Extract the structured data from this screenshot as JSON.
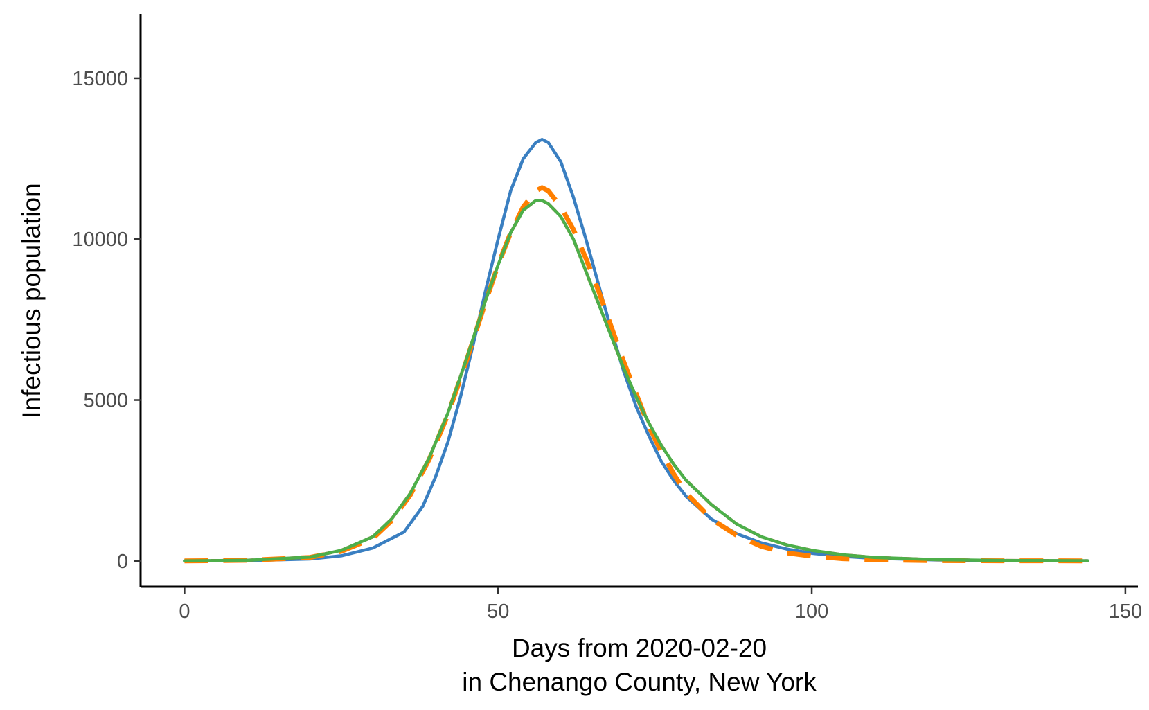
{
  "chart_data": {
    "type": "line",
    "title": "",
    "xlabel_line1": "Days from 2020-02-20",
    "xlabel_line2": "in Chenango County, New York",
    "ylabel": "Infectious population",
    "xlim": [
      -7,
      152
    ],
    "ylim": [
      -800,
      17000
    ],
    "x_ticks": [
      0,
      50,
      100,
      150
    ],
    "y_ticks": [
      0,
      5000,
      10000,
      15000
    ],
    "x_tick_labels": [
      "0",
      "50",
      "100",
      "150"
    ],
    "y_tick_labels": [
      "0",
      "5000",
      "10000",
      "15000"
    ],
    "grid": false,
    "legend": "none",
    "series": [
      {
        "color": "#3a7fc1",
        "style": "solid",
        "x": [
          0,
          10,
          20,
          25,
          30,
          35,
          38,
          40,
          42,
          44,
          46,
          48,
          50,
          52,
          54,
          56,
          57,
          58,
          60,
          62,
          64,
          66,
          68,
          70,
          72,
          74,
          76,
          78,
          80,
          84,
          88,
          92,
          96,
          100,
          105,
          110,
          120,
          130,
          144
        ],
        "y": [
          0,
          10,
          60,
          160,
          400,
          900,
          1700,
          2600,
          3700,
          5100,
          6700,
          8400,
          10000,
          11500,
          12500,
          13000,
          13100,
          13000,
          12400,
          11300,
          10000,
          8600,
          7200,
          5900,
          4800,
          3900,
          3100,
          2500,
          2000,
          1300,
          850,
          560,
          370,
          240,
          140,
          80,
          30,
          12,
          5
        ]
      },
      {
        "color": "#e31a1c",
        "style": "dashed",
        "x": [
          0,
          10,
          20,
          25,
          30,
          33,
          36,
          39,
          42,
          45,
          48,
          50,
          52,
          54,
          56,
          57,
          58,
          60,
          62,
          64,
          66,
          68,
          70,
          72,
          74,
          76,
          78,
          80,
          84,
          88,
          92,
          96,
          100,
          105,
          110,
          120,
          130,
          144
        ],
        "y": [
          0,
          20,
          120,
          330,
          750,
          1300,
          2100,
          3200,
          4600,
          6300,
          8100,
          9200,
          10200,
          10900,
          11200,
          11200,
          11100,
          10700,
          10000,
          9000,
          8000,
          7000,
          6000,
          5100,
          4300,
          3600,
          3000,
          2500,
          1750,
          1150,
          750,
          500,
          330,
          190,
          110,
          40,
          15,
          5
        ]
      },
      {
        "color": "#ff7f00",
        "style": "dashed",
        "x": [
          0,
          10,
          20,
          25,
          30,
          33,
          36,
          39,
          42,
          45,
          48,
          50,
          52,
          54,
          56,
          57,
          58,
          60,
          62,
          64,
          66,
          68,
          70,
          72,
          74,
          76,
          78,
          80,
          84,
          88,
          92,
          96,
          100,
          105,
          110,
          120,
          130,
          144
        ],
        "y": [
          0,
          20,
          110,
          300,
          700,
          1250,
          2050,
          3150,
          4550,
          6250,
          8050,
          9200,
          10200,
          11000,
          11500,
          11600,
          11500,
          11000,
          10300,
          9400,
          8400,
          7300,
          6200,
          5200,
          4200,
          3400,
          2700,
          2100,
          1300,
          800,
          450,
          250,
          150,
          70,
          35,
          10,
          5,
          2
        ]
      },
      {
        "color": "#4daf4a",
        "style": "solid",
        "x": [
          0,
          10,
          20,
          25,
          30,
          33,
          36,
          39,
          42,
          45,
          48,
          50,
          52,
          54,
          56,
          57,
          58,
          60,
          62,
          64,
          66,
          68,
          70,
          72,
          74,
          76,
          78,
          80,
          84,
          88,
          92,
          96,
          100,
          105,
          110,
          120,
          130,
          144
        ],
        "y": [
          0,
          20,
          120,
          330,
          750,
          1300,
          2100,
          3200,
          4600,
          6300,
          8100,
          9200,
          10200,
          10900,
          11200,
          11200,
          11100,
          10700,
          10000,
          9000,
          8000,
          7000,
          6000,
          5100,
          4300,
          3600,
          3000,
          2500,
          1750,
          1150,
          750,
          500,
          330,
          190,
          110,
          40,
          15,
          5
        ]
      }
    ]
  }
}
